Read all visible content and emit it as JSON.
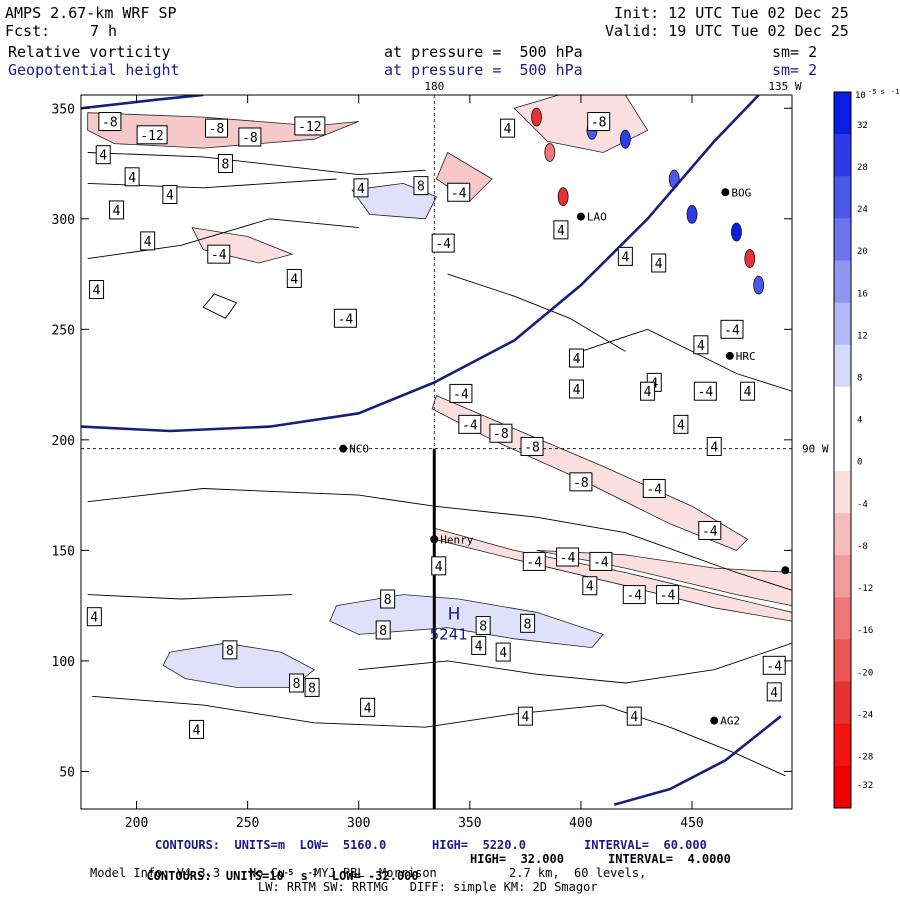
{
  "header": {
    "model": "AMPS 2.67-km WRF SP",
    "fcst_label": "Fcst:",
    "fcst_value": "7 h",
    "init": "Init: 12 UTC Tue 02 Dec 25",
    "valid": "Valid: 19 UTC Tue 02 Dec 25",
    "field1": "Relative vorticity",
    "field2": "Geopotential height",
    "pressure1": "at pressure =  500 hPa",
    "pressure2": "at pressure =  500 hPa",
    "sm1": "sm= 2",
    "sm2": "sm= 2"
  },
  "footer": {
    "line1a": "CONTOURS:  UNITS=m  LOW=  5160.0",
    "line1b": "HIGH=  5220.0",
    "line1c": "INTERVAL=  60.000",
    "line2a": "CONTOURS:  UNITS=10",
    "line2b": "-5",
    "line2c": " s",
    "line2d": "-1",
    "line2e": "  LOW= -32.000",
    "line2f": "HIGH=  32.000",
    "line2g": "INTERVAL=  4.0000",
    "line3": "Model Info: V4.3.3    No Cu    MYJ PBL  Morrison          2.7 km,  60 levels,",
    "line4": "LW: RRTM SW: RRTMG   DIFF: simple KM: 2D Smagor"
  },
  "colors": {
    "pos_max": "#0a1ee6",
    "neg_max": "#f00000",
    "height_line": "#14207a"
  },
  "chart_data": {
    "type": "heatmap",
    "title": "Relative vorticity / Geopotential height at 500 hPa",
    "xlim": [
      175,
      495
    ],
    "ylim": [
      33,
      356
    ],
    "xticks": [
      200,
      250,
      300,
      350,
      400,
      450
    ],
    "yticks": [
      50,
      100,
      150,
      200,
      250,
      300,
      350
    ],
    "xtick_labels": [
      "200",
      "250",
      "300",
      "350",
      "400",
      "450"
    ],
    "ytick_labels": [
      "50",
      "100",
      "150",
      "200",
      "250",
      "300",
      "350"
    ],
    "meridian_labels": {
      "top_180": "180",
      "top_135W": "135 W",
      "right_90W": "90 W"
    },
    "guides": {
      "vertical_x": 334,
      "horizontal_y": 196
    },
    "colorbar": {
      "units": "10",
      "units_exp": "-5 s",
      "units_exp2": "-1",
      "values": [
        32,
        28,
        24,
        20,
        16,
        12,
        8,
        4,
        0,
        -4,
        -8,
        -12,
        -16,
        -20,
        -24,
        -28,
        -32
      ],
      "labels": [
        "32",
        "28",
        "24",
        "20",
        "16",
        "12",
        "8",
        "4",
        "0",
        "-4",
        "-8",
        "-12",
        "-16",
        "-20",
        "-24",
        "-28",
        "-32"
      ],
      "colors": [
        "#0a1ee6",
        "#2c3ce8",
        "#4a58eb",
        "#6b76ee",
        "#8e96f2",
        "#b2b7f6",
        "#d6d9fa",
        "#ffffff",
        "#ffffff",
        "#fbdede",
        "#f7bcbc",
        "#f39a9a",
        "#ef7777",
        "#ea5555",
        "#e63232",
        "#f01414",
        "#f00000"
      ]
    },
    "stations": [
      {
        "name": "NCO",
        "x": 293,
        "y": 196
      },
      {
        "name": "Henry",
        "x": 334,
        "y": 155
      },
      {
        "name": "HRC",
        "x": 467,
        "y": 238
      },
      {
        "name": "AG2",
        "x": 460,
        "y": 73
      },
      {
        "name": "BOG",
        "x": 465,
        "y": 312
      },
      {
        "name": "LAO",
        "x": 400,
        "y": 301
      },
      {
        "name": "",
        "x": 492,
        "y": 141
      }
    ],
    "high": {
      "label": "H",
      "value": "5241",
      "x": 313,
      "y": 116
    },
    "height_contours": [
      {
        "level": 5220,
        "points": [
          [
            175,
            206
          ],
          [
            215,
            204
          ],
          [
            260,
            206
          ],
          [
            300,
            212
          ],
          [
            334,
            226
          ],
          [
            370,
            245
          ],
          [
            400,
            270
          ],
          [
            430,
            300
          ],
          [
            460,
            335
          ],
          [
            480,
            356
          ]
        ]
      },
      {
        "level": 5160,
        "points": [
          [
            415,
            35
          ],
          [
            440,
            42
          ],
          [
            465,
            55
          ],
          [
            490,
            75
          ]
        ]
      },
      {
        "level": 5220,
        "points": [
          [
            175,
            350
          ],
          [
            210,
            354
          ],
          [
            230,
            356
          ]
        ]
      }
    ],
    "contour_labels": [
      {
        "v": "-8",
        "x": 188,
        "y": 344
      },
      {
        "v": "-12",
        "x": 207,
        "y": 338
      },
      {
        "v": "-8",
        "x": 236,
        "y": 341
      },
      {
        "v": "-8",
        "x": 251,
        "y": 337
      },
      {
        "v": "-12",
        "x": 278,
        "y": 342
      },
      {
        "v": "4",
        "x": 185,
        "y": 329
      },
      {
        "v": "8",
        "x": 240,
        "y": 325
      },
      {
        "v": "4",
        "x": 198,
        "y": 319
      },
      {
        "v": "4",
        "x": 215,
        "y": 311
      },
      {
        "v": "4",
        "x": 191,
        "y": 304
      },
      {
        "v": "4",
        "x": 301,
        "y": 314
      },
      {
        "v": "8",
        "x": 328,
        "y": 315
      },
      {
        "v": "-4",
        "x": 345,
        "y": 312
      },
      {
        "v": "4",
        "x": 367,
        "y": 341
      },
      {
        "v": "-8",
        "x": 408,
        "y": 344
      },
      {
        "v": "4",
        "x": 205,
        "y": 290
      },
      {
        "v": "-4",
        "x": 237,
        "y": 284
      },
      {
        "v": "-4",
        "x": 338,
        "y": 289
      },
      {
        "v": "4",
        "x": 391,
        "y": 295
      },
      {
        "v": "4",
        "x": 420,
        "y": 283
      },
      {
        "v": "4",
        "x": 435,
        "y": 280
      },
      {
        "v": "4",
        "x": 182,
        "y": 268
      },
      {
        "v": "4",
        "x": 271,
        "y": 273
      },
      {
        "v": "-4",
        "x": 294,
        "y": 255
      },
      {
        "v": "4",
        "x": 454,
        "y": 243
      },
      {
        "v": "-4",
        "x": 468,
        "y": 250
      },
      {
        "v": "4",
        "x": 433,
        "y": 226
      },
      {
        "v": "4",
        "x": 398,
        "y": 237
      },
      {
        "v": "4",
        "x": 398,
        "y": 223
      },
      {
        "v": "-4",
        "x": 346,
        "y": 221
      },
      {
        "v": "-4",
        "x": 350,
        "y": 207
      },
      {
        "v": "-8",
        "x": 364,
        "y": 203
      },
      {
        "v": "-8",
        "x": 378,
        "y": 197
      },
      {
        "v": "4",
        "x": 445,
        "y": 207
      },
      {
        "v": "4",
        "x": 430,
        "y": 222
      },
      {
        "v": "4",
        "x": 460,
        "y": 197
      },
      {
        "v": "4",
        "x": 475,
        "y": 222
      },
      {
        "v": "-4",
        "x": 456,
        "y": 222
      },
      {
        "v": "-8",
        "x": 400,
        "y": 181
      },
      {
        "v": "-4",
        "x": 433,
        "y": 178
      },
      {
        "v": "-4",
        "x": 458,
        "y": 159
      },
      {
        "v": "-4",
        "x": 379,
        "y": 145
      },
      {
        "v": "-4",
        "x": 394,
        "y": 147
      },
      {
        "v": "-4",
        "x": 409,
        "y": 145
      },
      {
        "v": "4",
        "x": 336,
        "y": 143
      },
      {
        "v": "4",
        "x": 404,
        "y": 134
      },
      {
        "v": "-4",
        "x": 424,
        "y": 130
      },
      {
        "v": "-4",
        "x": 439,
        "y": 130
      },
      {
        "v": "8",
        "x": 376,
        "y": 117
      },
      {
        "v": "8",
        "x": 313,
        "y": 128
      },
      {
        "v": "8",
        "x": 311,
        "y": 114
      },
      {
        "v": "8",
        "x": 356,
        "y": 116
      },
      {
        "v": "8",
        "x": 242,
        "y": 105
      },
      {
        "v": "4",
        "x": 181,
        "y": 120
      },
      {
        "v": "4",
        "x": 354,
        "y": 107
      },
      {
        "v": "4",
        "x": 365,
        "y": 104
      },
      {
        "v": "8",
        "x": 272,
        "y": 90
      },
      {
        "v": "8",
        "x": 279,
        "y": 88
      },
      {
        "v": "4",
        "x": 304,
        "y": 79
      },
      {
        "v": "4",
        "x": 375,
        "y": 75
      },
      {
        "v": "4",
        "x": 227,
        "y": 69
      },
      {
        "v": "4",
        "x": 424,
        "y": 75
      },
      {
        "v": "-4",
        "x": 487,
        "y": 98
      },
      {
        "v": "4",
        "x": 487,
        "y": 86
      }
    ]
  }
}
